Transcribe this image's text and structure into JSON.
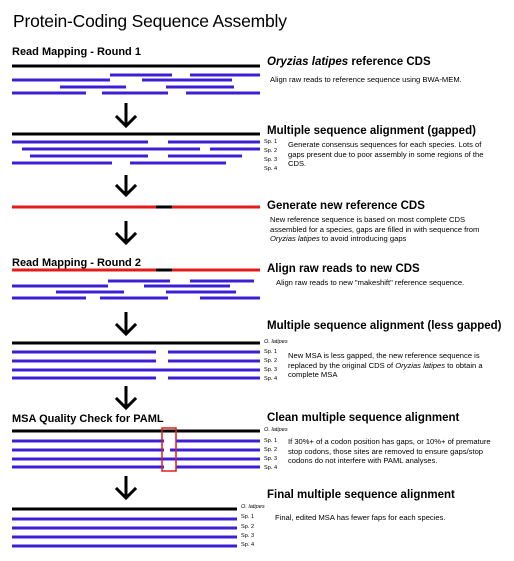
{
  "page": {
    "title": "Protein-Coding Sequence Assembly"
  },
  "colors": {
    "reference": "#000000",
    "read": "#3b1fd6",
    "new_reference": "#e31b1b",
    "highlight_box": "#e31b1b"
  },
  "sections": {
    "round1": "Read Mapping - Round 1",
    "round2": "Read Mapping - Round 2",
    "quality": "MSA Quality Check for PAML"
  },
  "steps": [
    {
      "title_italic": "Oryzias latipes",
      "title_rest": " reference CDS",
      "desc": "Align raw reads to reference sequence using BWA-MEM."
    },
    {
      "title": "Multiple sequence alignment (gapped)",
      "desc": "Generate consensus sequences for each species. Lots of gaps present due to poor assembly in some regions of the CDS."
    },
    {
      "title": "Generate new reference CDS",
      "desc_a": "New reference sequence is based on most complete CDS assembled for a species, gaps are filled in with sequence from ",
      "desc_italic": "Oryzias latipes",
      "desc_b": " to avoid introducing gaps"
    },
    {
      "title": "Align raw reads to new CDS",
      "desc": "Align raw reads to new \"makeshift\" reference sequence."
    },
    {
      "title": "Multiple sequence alignment (less gapped)",
      "desc_a": "New MSA is less gapped, the new reference sequence is replaced by the original CDS of ",
      "desc_italic": "Oryzias latipes",
      "desc_b": " to obtain a complete MSA"
    },
    {
      "title": "Clean multiple sequence alignment",
      "desc": "If 30%+ of a codon position has gaps, or 10%+ of premature stop codons, those sites are removed to ensure gaps/stop codons do not interfere with PAML analyses."
    },
    {
      "title": "Final multiple sequence alignment",
      "desc": "Final, edited MSA has fewer faps for each species."
    }
  ],
  "species_labels": [
    "Sp. 1",
    "Sp. 2",
    "Sp. 3",
    "Sp. 4"
  ],
  "reference_label": "O. latipes"
}
